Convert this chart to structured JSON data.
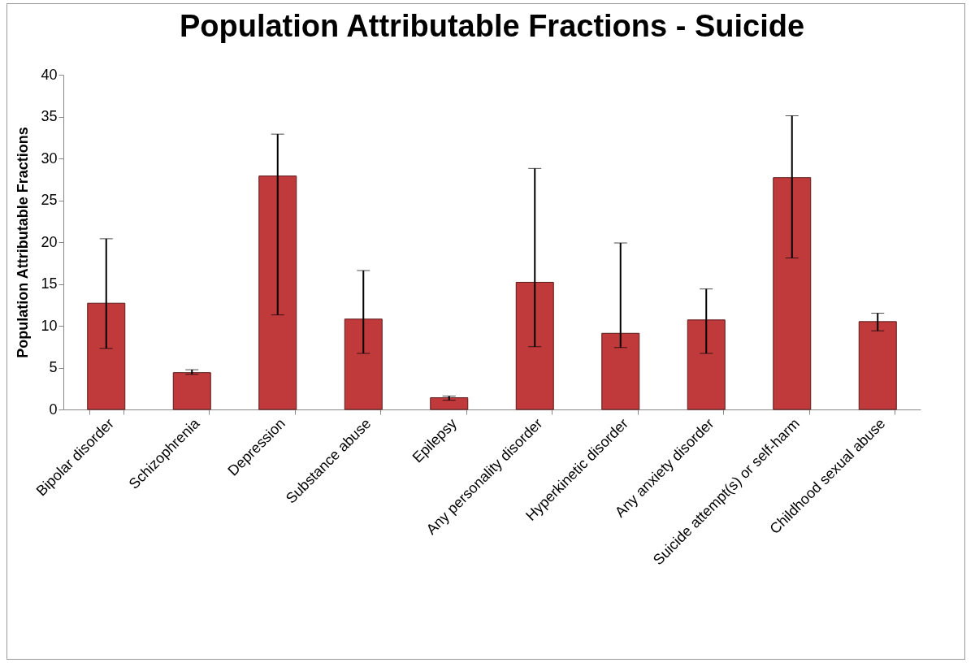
{
  "chart_data": {
    "type": "bar",
    "title": "Population Attributable Fractions - Suicide",
    "ylabel": "Population Attributable Fractions",
    "categories": [
      "Bipolar disorder",
      "Schizophrenia",
      "Depression",
      "Substance abuse",
      "Epilepsy",
      "Any personality disorder",
      "Hyperkinetic disorder",
      "Any anxiety disorder",
      "Suicide attempt(s) or self-harm",
      "Childhood sexual abuse"
    ],
    "values": [
      12.7,
      4.4,
      27.9,
      10.8,
      1.4,
      15.2,
      9.1,
      10.7,
      27.7,
      10.5
    ],
    "errors": [
      [
        7.3,
        20.4
      ],
      [
        4.2,
        4.75
      ],
      [
        11.3,
        32.9
      ],
      [
        6.7,
        16.6
      ],
      [
        1.1,
        1.6
      ],
      [
        7.5,
        28.8
      ],
      [
        7.4,
        19.9
      ],
      [
        6.7,
        14.4
      ],
      [
        18.1,
        35.1
      ],
      [
        9.4,
        11.5
      ]
    ],
    "color": "#c0393b",
    "ylim": [
      0,
      40
    ],
    "yticks": [
      0,
      5,
      10,
      15,
      20,
      25,
      30,
      35,
      40
    ],
    "grid": false
  }
}
